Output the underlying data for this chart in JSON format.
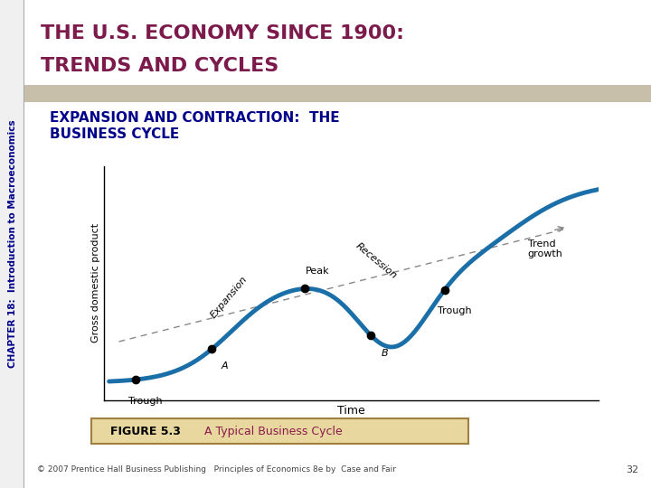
{
  "title_main_line1": "THE U.S. ECONOMY SINCE 1900:",
  "title_main_line2": "TRENDS AND CYCLES",
  "title_main_color": "#7B1A4B",
  "title_main_bg": "#E8E0D0",
  "title_bar_color": "#C8BFAA",
  "subtitle": "EXPANSION AND CONTRACTION:  THE\nBUSINESS CYCLE",
  "subtitle_color": "#00008B",
  "sidebar_text": "CHAPTER 18:  Introduction to Macroeconomics",
  "sidebar_color": "#00008B",
  "sidebar_bg": "#EFEFEF",
  "xlabel": "Time",
  "ylabel": "Gross domestic product",
  "curve_color": "#1B6FA8",
  "trend_color": "#888888",
  "bg_color": "#FFFFFF",
  "figure_bg": "#FFFFFF",
  "footer_text": "© 2007 Prentice Hall Business Publishing   Principles of Economics 8e by  Case and Fair",
  "page_number": "32",
  "figure_caption_bold": "FIGURE 5.3",
  "figure_caption_text": "  A Typical Business Cycle",
  "figure_caption_color": "#8B1A4B",
  "figure_caption_bg": "#E8D8A0"
}
